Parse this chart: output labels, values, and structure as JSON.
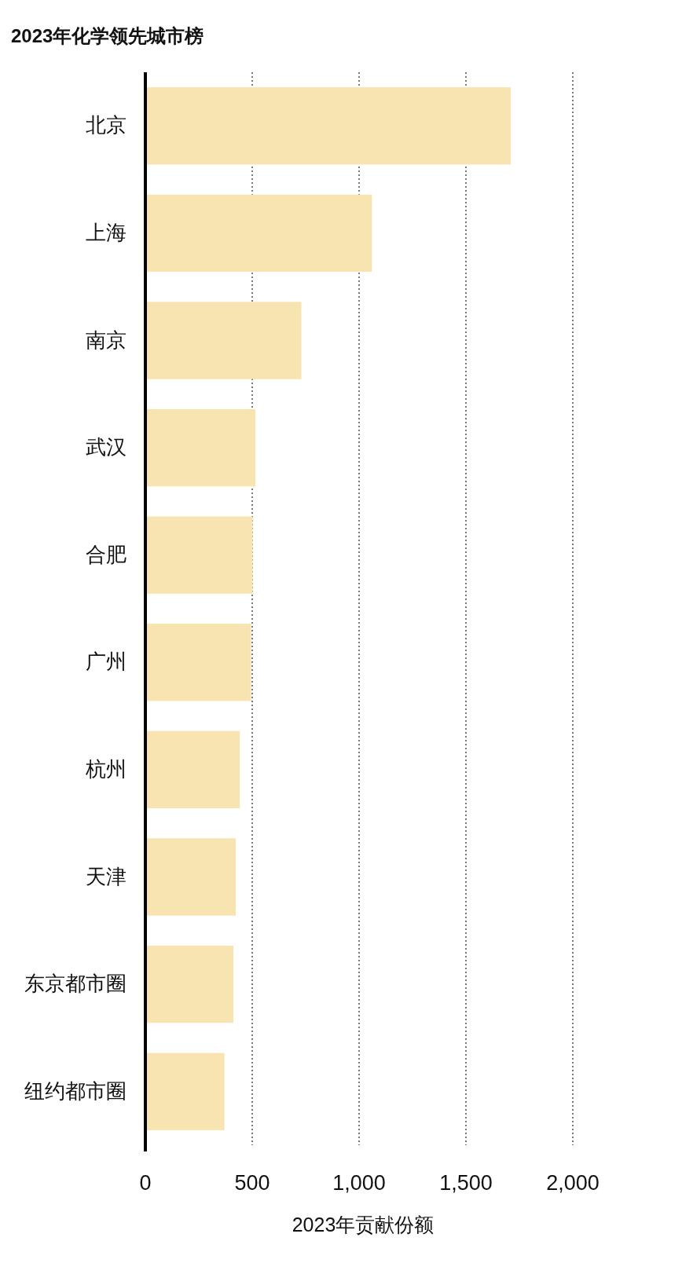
{
  "chart_data": {
    "type": "bar",
    "orientation": "horizontal",
    "title": "2023年化学领先城市榜",
    "xlabel": "2023年贡献份额",
    "categories": [
      "北京",
      "上海",
      "南京",
      "武汉",
      "合肥",
      "广州",
      "杭州",
      "天津",
      "东京都市圈",
      "纽约都市圈"
    ],
    "values": [
      1710,
      1060,
      730,
      515,
      502,
      495,
      442,
      423,
      412,
      370
    ],
    "color": "#f8e4b0",
    "xlim": [
      0,
      2000
    ],
    "xticks": [
      0,
      500,
      {
        "value": 1000,
        "label": "1,000"
      },
      {
        "value": 1500,
        "label": "1,500"
      },
      {
        "value": 2000,
        "label": "2,000"
      }
    ],
    "grid": "x"
  }
}
